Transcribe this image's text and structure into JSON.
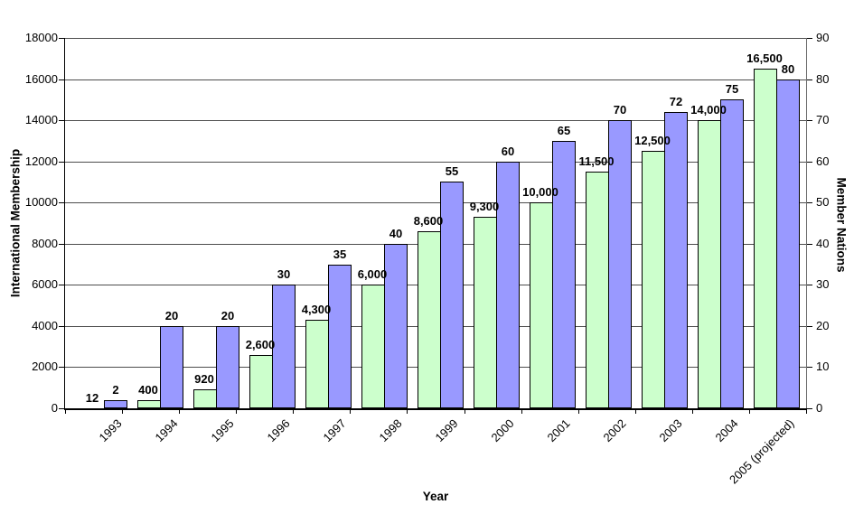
{
  "chart_data": {
    "type": "bar",
    "subtype": "grouped-dual-axis-column",
    "title": "",
    "categories": [
      "1993",
      "1994",
      "1995",
      "1996",
      "1997",
      "1998",
      "1999",
      "2000",
      "2001",
      "2002",
      "2003",
      "2004",
      "2005 (projected)"
    ],
    "series": [
      {
        "name": "International Membership",
        "axis": "left",
        "color": "#CCFFCC",
        "border_color": "#000000",
        "values": [
          12,
          400,
          920,
          2600,
          4300,
          6000,
          8600,
          9300,
          10000,
          11500,
          12500,
          14000,
          16500
        ],
        "labels": [
          "12",
          "400",
          "920",
          "2,600",
          "4,300",
          "6,000",
          "8,600",
          "9,300",
          "10,000",
          "11,500",
          "12,500",
          "14,000",
          "16,500"
        ]
      },
      {
        "name": "Member Nations",
        "axis": "right",
        "color": "#9999FF",
        "border_color": "#000000",
        "values": [
          2,
          20,
          20,
          30,
          35,
          40,
          55,
          60,
          65,
          70,
          72,
          75,
          80
        ],
        "labels": [
          "2",
          "20",
          "20",
          "30",
          "35",
          "40",
          "55",
          "60",
          "65",
          "70",
          "72",
          "75",
          "80"
        ]
      }
    ],
    "left_axis": {
      "title": "International Membership",
      "min": 0,
      "max": 18000,
      "step": 2000,
      "tick_labels": [
        "18000",
        "16000",
        "14000",
        "12000",
        "10000",
        "8000",
        "6000",
        "4000",
        "2000",
        "0"
      ]
    },
    "right_axis": {
      "title": "Member Nations",
      "min": 0,
      "max": 90,
      "step": 10,
      "tick_labels": [
        "90",
        "80",
        "70",
        "60",
        "50",
        "40",
        "30",
        "20",
        "10",
        "0"
      ]
    },
    "x_axis": {
      "title": "Year"
    },
    "gridlines": true,
    "legend": "none",
    "plot_background": "#FFFFFF",
    "gridline_color": "#4d4d4d",
    "label_color": "#000000"
  }
}
